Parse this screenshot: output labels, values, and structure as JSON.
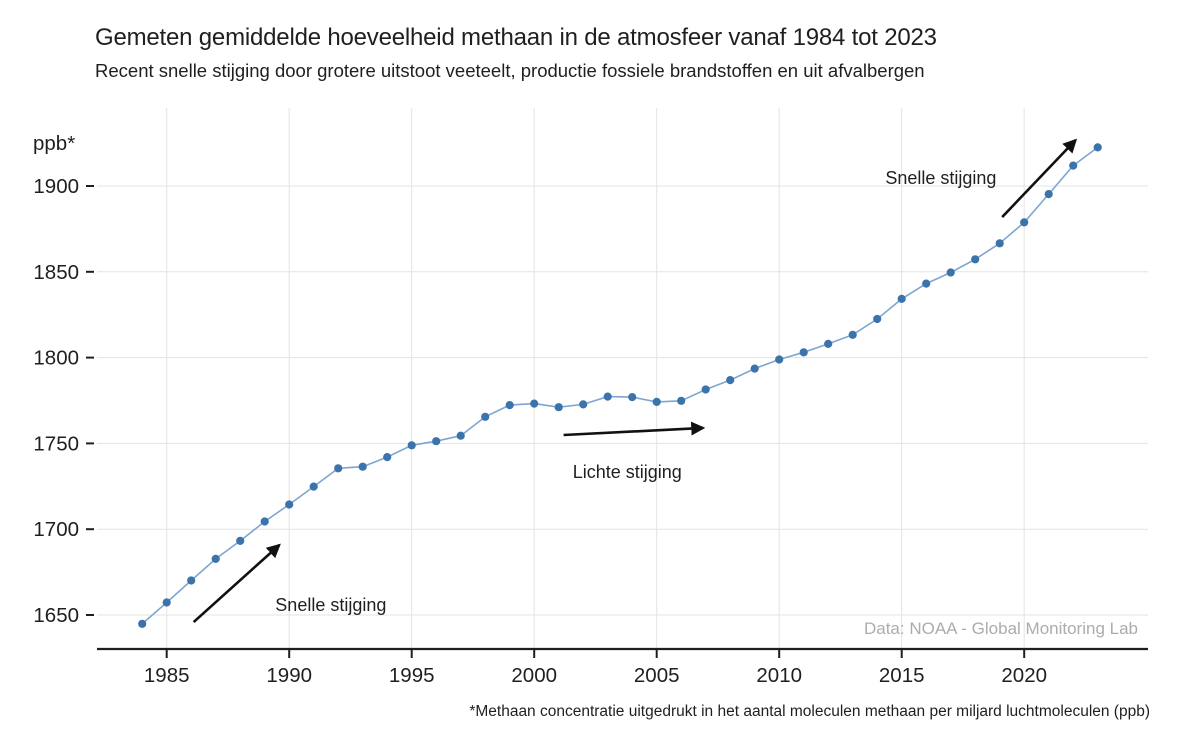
{
  "chart_data": {
    "type": "line",
    "title": "Gemeten gemiddelde hoeveelheid methaan in de atmosfeer vanaf 1984 tot 2023",
    "subtitle": "Recent snelle stijging door grotere uitstoot veeteelt, productie fossiele brandstoffen en uit afvalbergen",
    "ylabel": "ppb*",
    "xlabel": "",
    "source": "Data: NOAA - Global Monitoring Lab",
    "footnote": "*Methaan concentratie uitgedrukt in het aantal moleculen methaan per miljard luchtmoleculen (ppb)",
    "x": [
      1984,
      1985,
      1986,
      1987,
      1988,
      1989,
      1990,
      1991,
      1992,
      1993,
      1994,
      1995,
      1996,
      1997,
      1998,
      1999,
      2000,
      2001,
      2002,
      2003,
      2004,
      2005,
      2006,
      2007,
      2008,
      2009,
      2010,
      2011,
      2012,
      2013,
      2014,
      2015,
      2016,
      2017,
      2018,
      2019,
      2020,
      2021,
      2022,
      2023
    ],
    "series": [
      {
        "name": "methaan-concentratie-ppb",
        "values": [
          1644.9,
          1657.3,
          1670.1,
          1682.7,
          1693.2,
          1704.5,
          1714.4,
          1724.8,
          1735.5,
          1736.4,
          1742.0,
          1748.9,
          1751.3,
          1754.5,
          1765.5,
          1772.3,
          1773.2,
          1771.1,
          1772.7,
          1777.3,
          1777.0,
          1774.2,
          1774.8,
          1781.4,
          1786.9,
          1793.6,
          1798.9,
          1803.1,
          1808.0,
          1813.3,
          1822.5,
          1834.2,
          1843.1,
          1849.6,
          1857.3,
          1866.6,
          1878.8,
          1895.3,
          1911.9,
          1922.5
        ]
      }
    ],
    "x_ticks": [
      1985,
      1990,
      1995,
      2000,
      2005,
      2010,
      2015,
      2020
    ],
    "y_ticks": [
      1650,
      1700,
      1750,
      1800,
      1850,
      1900
    ],
    "xlim": [
      1982.2,
      2025.3
    ],
    "ylim": [
      1630,
      1945
    ],
    "grid": true,
    "legend": "none",
    "annotations": [
      {
        "text": "Snelle stijging",
        "text_x": 1991.7,
        "text_y": 1655.8,
        "arrow_from_x": 1986.1,
        "arrow_from_y": 1645.9,
        "arrow_to_x": 1989.6,
        "arrow_to_y": 1690.8
      },
      {
        "text": "Lichte stijging",
        "text_x": 2003.8,
        "text_y": 1733.3,
        "arrow_from_x": 2001.2,
        "arrow_from_y": 1754.9,
        "arrow_to_x": 2006.9,
        "arrow_to_y": 1759.0
      },
      {
        "text": "Snelle stijging",
        "text_x": 2016.6,
        "text_y": 1904.7,
        "arrow_from_x": 2019.1,
        "arrow_from_y": 1881.9,
        "arrow_to_x": 2022.1,
        "arrow_to_y": 1926.8
      }
    ],
    "colors": {
      "marker": "#3b73ab",
      "line": "#7ea6d2",
      "grid": "#e3e3e3",
      "axis": "#1f1f1f",
      "text": "#1f1f1f",
      "annotation": "#111111",
      "source_text": "#acacac"
    }
  }
}
